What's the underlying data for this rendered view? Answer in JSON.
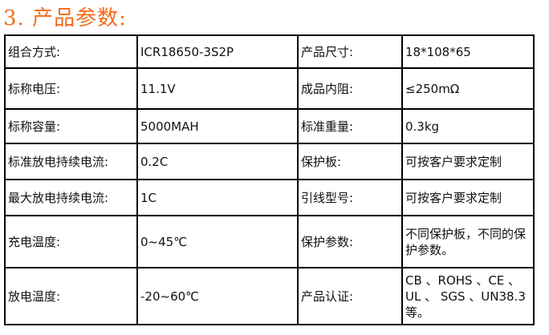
{
  "title": "3. 产品参数:",
  "rows": [
    [
      "组合方式:",
      "ICR18650-3S2P",
      "产品尺寸:",
      "18*108*65"
    ],
    [
      "标称电压:",
      "11.1V",
      "成品内阻:",
      "≤250mΩ"
    ],
    [
      "标称容量:",
      "5000MAH",
      "标准重量:",
      "0.3kg"
    ],
    [
      "标准放电持续电流:",
      "0.2C",
      "保护板:",
      "可按客户要求定制"
    ],
    [
      "最大放电持续电流:",
      "1C",
      "引线型号:",
      "可按客户要求定制"
    ],
    [
      "充电温度:",
      "0~45℃",
      "保护参数:",
      " 不同保护板，不同的保护参数。"
    ],
    [
      "放电温度:",
      "-20~60℃",
      "产品认证:",
      "CB 、ROHS 、CE 、UL 、 SGS 、UN38.3等。"
    ]
  ]
}
